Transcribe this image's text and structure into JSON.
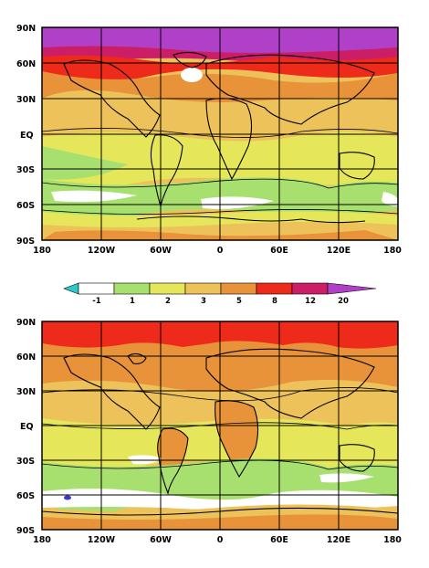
{
  "maps": [
    {
      "id": "top",
      "y_ticks": [
        "90N",
        "60N",
        "30N",
        "EQ",
        "30S",
        "60S",
        "90S"
      ],
      "x_ticks": [
        "180",
        "120W",
        "60W",
        "0",
        "60E",
        "120E",
        "180"
      ]
    },
    {
      "id": "bottom",
      "y_ticks": [
        "90N",
        "60N",
        "30N",
        "EQ",
        "30S",
        "60S",
        "90S"
      ],
      "x_ticks": [
        "180",
        "120W",
        "60W",
        "0",
        "60E",
        "120E",
        "180"
      ]
    }
  ],
  "colorbar": {
    "levels": [
      "-1",
      "1",
      "2",
      "3",
      "5",
      "8",
      "12",
      "20"
    ],
    "colors": [
      "#30c8c8",
      "#ffffff",
      "#a8e070",
      "#e6e65a",
      "#eec25a",
      "#e8923a",
      "#ee2a1a",
      "#cc1e66",
      "#b040c8"
    ]
  }
}
